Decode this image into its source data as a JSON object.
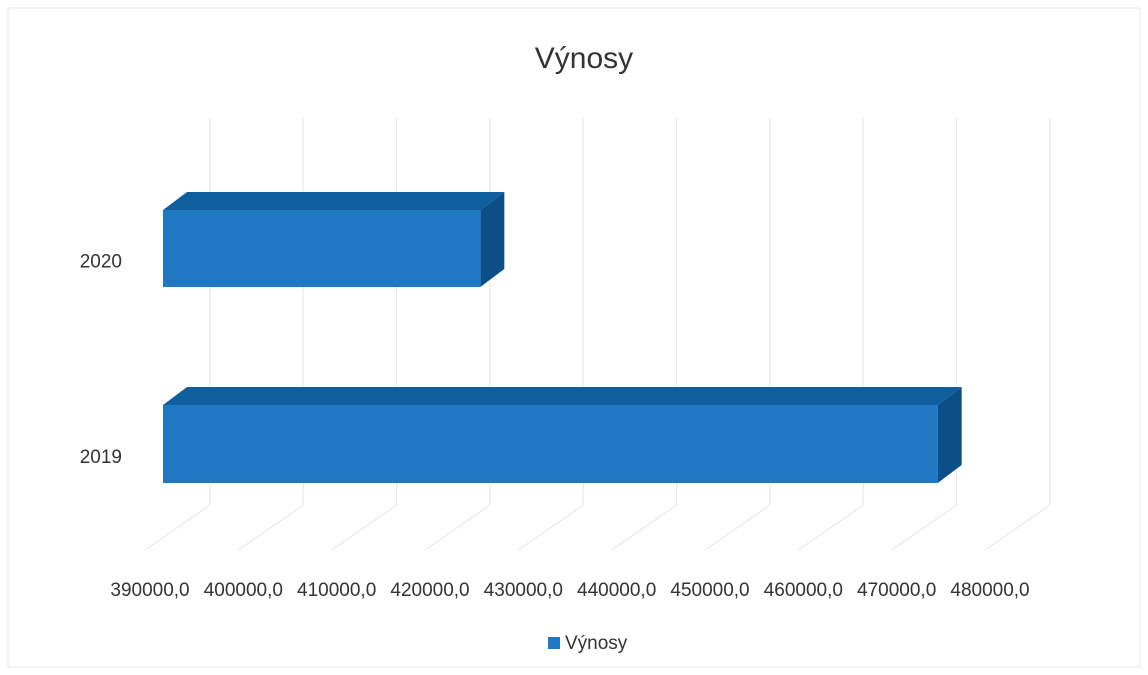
{
  "chart_data": {
    "type": "bar3d",
    "orientation": "horizontal",
    "title": "Výnosy",
    "categories": [
      "2020",
      "2019"
    ],
    "series": [
      {
        "name": "Výnosy",
        "color": "#1f78c1",
        "values": [
          424000,
          473000
        ]
      }
    ],
    "xlim": [
      390000,
      480000
    ],
    "xticks": [
      {
        "value": 390000,
        "label": "390000,0"
      },
      {
        "value": 400000,
        "label": "400000,0"
      },
      {
        "value": 410000,
        "label": "410000,0"
      },
      {
        "value": 420000,
        "label": "420000,0"
      },
      {
        "value": 430000,
        "label": "430000,0"
      },
      {
        "value": 440000,
        "label": "440000,0"
      },
      {
        "value": 450000,
        "label": "450000,0"
      },
      {
        "value": 460000,
        "label": "460000,0"
      },
      {
        "value": 470000,
        "label": "470000,0"
      },
      {
        "value": 480000,
        "label": "480000,0"
      }
    ],
    "grid": true,
    "legend": "bottom"
  }
}
